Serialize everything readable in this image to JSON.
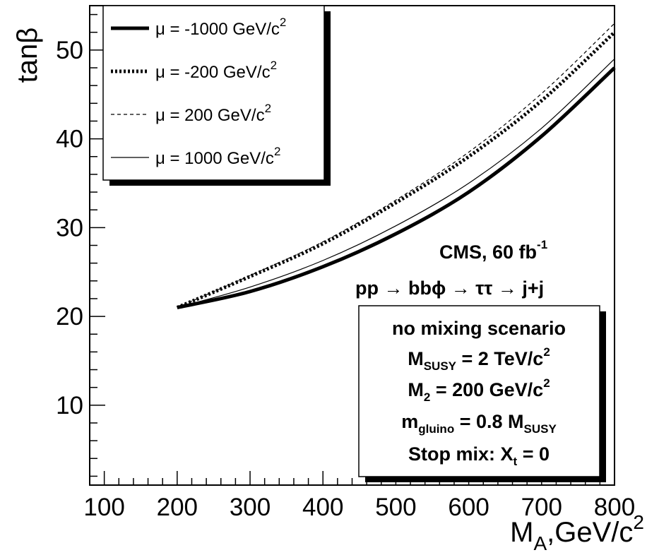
{
  "chart_data": {
    "type": "line",
    "title": "",
    "xlabel_main": "M",
    "xlabel_sub": "A",
    "xlabel_rest": ",GeV/c",
    "xlabel_sup": "2",
    "ylabel": "tanβ",
    "xlim": [
      80,
      800
    ],
    "ylim": [
      1,
      55
    ],
    "x_ticks": [
      100,
      200,
      300,
      400,
      500,
      600,
      700,
      800
    ],
    "y_ticks": [
      10,
      20,
      30,
      40,
      50
    ],
    "grid": false,
    "legend_position": "top-left",
    "series": [
      {
        "name": "μ = -1000 GeV/c",
        "sup": "2",
        "style": "thick-solid",
        "x": [
          200,
          300,
          400,
          500,
          600,
          700,
          800
        ],
        "y": [
          21,
          22.8,
          25.6,
          29.3,
          34.0,
          40.3,
          48.0
        ]
      },
      {
        "name": "μ = -200 GeV/c",
        "sup": "2",
        "style": "thick-dotted",
        "x": [
          200,
          300,
          400,
          500,
          600,
          700,
          800
        ],
        "y": [
          21,
          24.5,
          28.2,
          32.8,
          38.0,
          44.3,
          52.0
        ]
      },
      {
        "name": "μ = 200 GeV/c",
        "sup": "2",
        "style": "thin-dashed",
        "x": [
          200,
          300,
          400,
          500,
          600,
          700,
          800
        ],
        "y": [
          21,
          24.6,
          28.4,
          33.1,
          38.5,
          45.1,
          53.0
        ]
      },
      {
        "name": "μ = 1000 GeV/c",
        "sup": "2",
        "style": "thin-solid",
        "x": [
          200,
          300,
          400,
          500,
          600,
          700,
          800
        ],
        "y": [
          21,
          23.3,
          26.3,
          30.2,
          35.0,
          41.2,
          49.0
        ]
      }
    ],
    "annotations": {
      "cms_text": "CMS, 60 fb",
      "cms_sup": "-1",
      "process": "pp → bbϕ → ττ → j+j",
      "box_lines": [
        {
          "main": "no mixing scenario",
          "sub": "",
          "rest": "",
          "sup": ""
        },
        {
          "main": "M",
          "sub": "SUSY",
          "rest": " = 2 TeV/c",
          "sup": "2"
        },
        {
          "main": "M",
          "sub": "2",
          "rest": " = 200 GeV/c",
          "sup": "2"
        },
        {
          "main": "m",
          "sub": "gluino",
          "rest": " = 0.8 M",
          "sub2": "SUSY"
        },
        {
          "main": "Stop mix: X",
          "sub": "t",
          "rest": " = 0",
          "sup": ""
        }
      ]
    }
  }
}
